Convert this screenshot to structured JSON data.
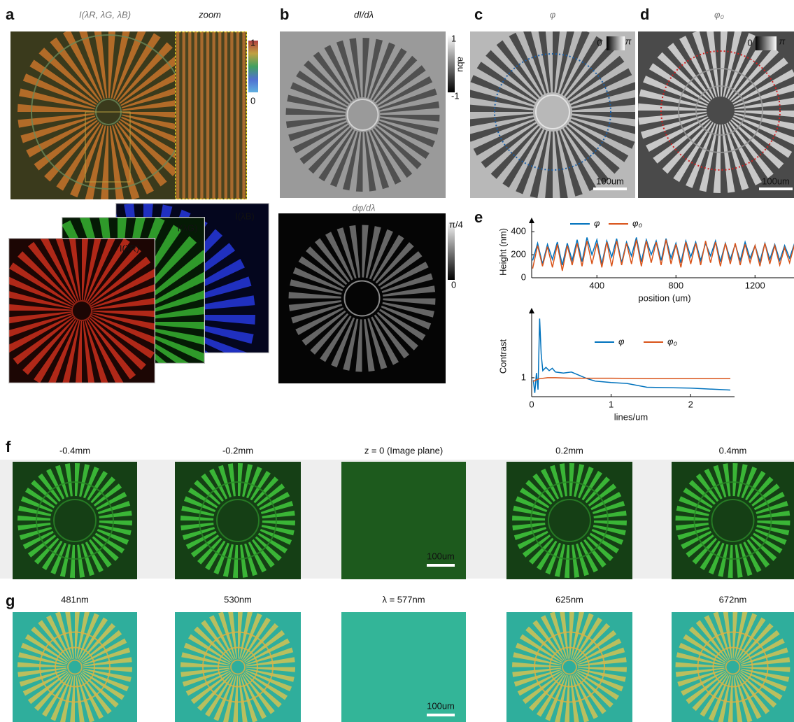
{
  "panels": {
    "a": {
      "label": "a",
      "title": "I(λR, λG, λB)",
      "zoom_title": "zoom",
      "colorbar": {
        "max": "1",
        "min": "0"
      },
      "layers": [
        "I(λR)",
        "I(λG)",
        "I(λB)"
      ]
    },
    "b": {
      "label": "b",
      "title": "dI/dλ",
      "colorbar": {
        "max": "1",
        "unit": "abu",
        "min": "-1"
      },
      "title2": "dφ/dλ",
      "colorbar2": {
        "max": "π/4",
        "min": "0"
      }
    },
    "c": {
      "label": "c",
      "title": "φ",
      "colorbar": {
        "min": "0",
        "max": "π"
      },
      "scalebar": "100um"
    },
    "d": {
      "label": "d",
      "title": "φ₀",
      "colorbar": {
        "min": "0",
        "max": "π"
      },
      "scalebar": "100um"
    },
    "e": {
      "label": "e",
      "height_chart": {
        "type": "line",
        "ylabel": "Height (nm)",
        "xlabel": "position (um)",
        "x": [
          75,
          100,
          125,
          150,
          175,
          200,
          225,
          250,
          275,
          300,
          325,
          350,
          375,
          400,
          425,
          450,
          475,
          500,
          525,
          550,
          575,
          600,
          625,
          650,
          675,
          700,
          725,
          750,
          775,
          800,
          825,
          850,
          875,
          900,
          925,
          950,
          975,
          1000,
          1025,
          1050,
          1075,
          1100,
          1125,
          1150,
          1175,
          1200,
          1225,
          1250,
          1275,
          1300,
          1325,
          1350,
          1375,
          1400
        ],
        "series": [
          {
            "name": "φ",
            "color": "#0072bd",
            "values": [
              150,
              300,
              120,
              290,
              160,
              310,
              110,
              300,
              150,
              330,
              140,
              350,
              200,
              330,
              120,
              320,
              180,
              340,
              130,
              310,
              190,
              350,
              140,
              330,
              200,
              320,
              150,
              340,
              170,
              300,
              130,
              320,
              180,
              310,
              150,
              300,
              190,
              320,
              140,
              300,
              160,
              290,
              150,
              310,
              170,
              280,
              140,
              300,
              160,
              290,
              150,
              280,
              170,
              300
            ]
          },
          {
            "name": "φ₀",
            "color": "#d95319",
            "values": [
              80,
              280,
              100,
              270,
              90,
              290,
              60,
              280,
              110,
              300,
              100,
              320,
              120,
              300,
              90,
              310,
              100,
              320,
              110,
              300,
              120,
              330,
              100,
              320,
              130,
              310,
              110,
              330,
              120,
              290,
              90,
              310,
              120,
              300,
              110,
              320,
              130,
              310,
              100,
              300,
              120,
              300,
              110,
              290,
              130,
              280,
              100,
              300,
              120,
              280,
              110,
              260,
              130,
              290
            ]
          }
        ],
        "xlim": [
          70,
          1415
        ],
        "ylim": [
          0,
          450
        ],
        "xticks": [
          400,
          800,
          1200
        ],
        "yticks": [
          0,
          200,
          400
        ]
      },
      "contrast_chart": {
        "type": "line",
        "ylabel": "Contrast",
        "xlabel": "lines/um",
        "series": [
          {
            "name": "φ",
            "color": "#0072bd",
            "x": [
              0.02,
              0.04,
              0.06,
              0.08,
              0.1,
              0.12,
              0.14,
              0.18,
              0.22,
              0.26,
              0.3,
              0.4,
              0.5,
              0.6,
              0.7,
              0.8,
              1.0,
              1.2,
              1.45,
              2.0,
              2.5
            ],
            "values": [
              0.95,
              0.68,
              1.1,
              0.75,
              2.25,
              1.5,
              1.15,
              1.22,
              1.15,
              1.2,
              1.12,
              1.1,
              1.12,
              1.05,
              0.98,
              0.93,
              0.9,
              0.88,
              0.8,
              0.78,
              0.74
            ]
          },
          {
            "name": "φ₀",
            "color": "#d95319",
            "x": [
              0.02,
              0.05,
              0.1,
              0.2,
              0.3,
              0.5,
              1.0,
              1.5,
              2.0,
              2.5
            ],
            "values": [
              0.92,
              0.95,
              0.98,
              1.0,
              1.0,
              0.99,
              0.99,
              0.98,
              0.98,
              0.98
            ]
          }
        ],
        "xlim": [
          0,
          2.5
        ],
        "ylim": [
          0.6,
          2.3
        ],
        "xticks": [
          0,
          1,
          2
        ],
        "yticks": [
          1
        ]
      }
    },
    "f": {
      "label": "f",
      "images": [
        "-0.4mm",
        "-0.2mm",
        "z = 0 (Image plane)",
        "0.2mm",
        "0.4mm"
      ],
      "scalebar": "100um"
    },
    "g": {
      "label": "g",
      "images": [
        "481nm",
        "530nm",
        "λ = 577nm",
        "625nm",
        "672nm"
      ],
      "scalebar": "100um"
    }
  }
}
